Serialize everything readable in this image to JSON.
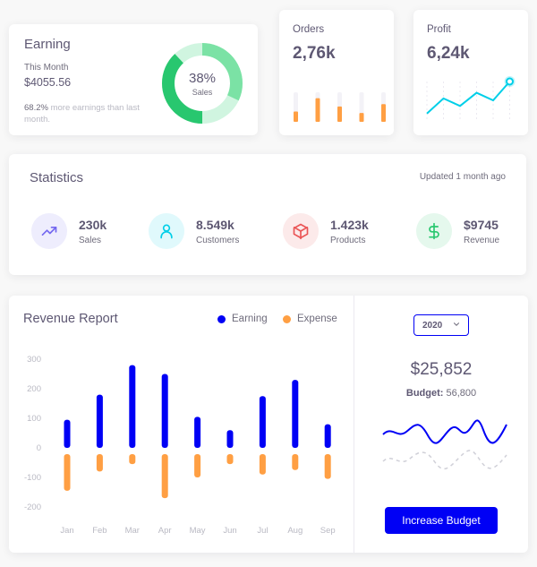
{
  "earning": {
    "title": "Earning",
    "period_label": "This Month",
    "amount": "$4055.56",
    "note_pct": "68.2%",
    "note_text": " more earnings than last month.",
    "donut_percent": "38%",
    "donut_label": "Sales",
    "donut_value": 38,
    "colors": {
      "main": "#28c76f",
      "mid": "#7be2a5",
      "light": "#d0f5e0"
    }
  },
  "orders": {
    "title": "Orders",
    "value": "2,76k",
    "bar_levels": [
      0.35,
      0.8,
      0.52,
      0.3,
      0.6
    ],
    "color": "#ff9f43"
  },
  "profit": {
    "title": "Profit",
    "value": "6,24k",
    "line_levels": [
      0.15,
      0.55,
      0.35,
      0.7,
      0.5,
      1.0
    ],
    "color": "#00cfe8"
  },
  "statistics": {
    "title": "Statistics",
    "updated": "Updated 1 month ago",
    "items": [
      {
        "value": "230k",
        "label": "Sales",
        "icon": "trending-up-icon",
        "color": "#7367f0",
        "bg": "#eeedfd"
      },
      {
        "value": "8.549k",
        "label": "Customers",
        "icon": "user-icon",
        "color": "#00cfe8",
        "bg": "#e0f9fc"
      },
      {
        "value": "1.423k",
        "label": "Products",
        "icon": "box-icon",
        "color": "#ea5455",
        "bg": "#fceaea"
      },
      {
        "value": "$9745",
        "label": "Revenue",
        "icon": "dollar-icon",
        "color": "#28c76f",
        "bg": "#e5f8ed"
      }
    ]
  },
  "revenue": {
    "title": "Revenue Report",
    "legend": {
      "earning": "Earning",
      "expense": "Expense"
    },
    "year": "2020",
    "total": "$25,852",
    "budget_label": "Budget:",
    "budget_value": " 56,800",
    "button": "Increase Budget"
  },
  "chart_data": [
    {
      "type": "bar",
      "categories": [
        "Jan",
        "Feb",
        "Mar",
        "Apr",
        "May",
        "Jun",
        "Jul",
        "Aug",
        "Sep"
      ],
      "series": [
        {
          "name": "Earning",
          "values": [
            95,
            180,
            280,
            250,
            105,
            60,
            175,
            230,
            80
          ],
          "color": "#0000f5"
        },
        {
          "name": "Expense",
          "values": [
            -145,
            -80,
            -55,
            -170,
            -100,
            -55,
            -90,
            -75,
            -105
          ],
          "color": "#ff9f43"
        }
      ],
      "yticks": [
        300,
        200,
        100,
        0,
        -100,
        -200
      ],
      "ylim": [
        -200,
        300
      ],
      "title": "Revenue Report",
      "legend_position": "top-right"
    }
  ]
}
